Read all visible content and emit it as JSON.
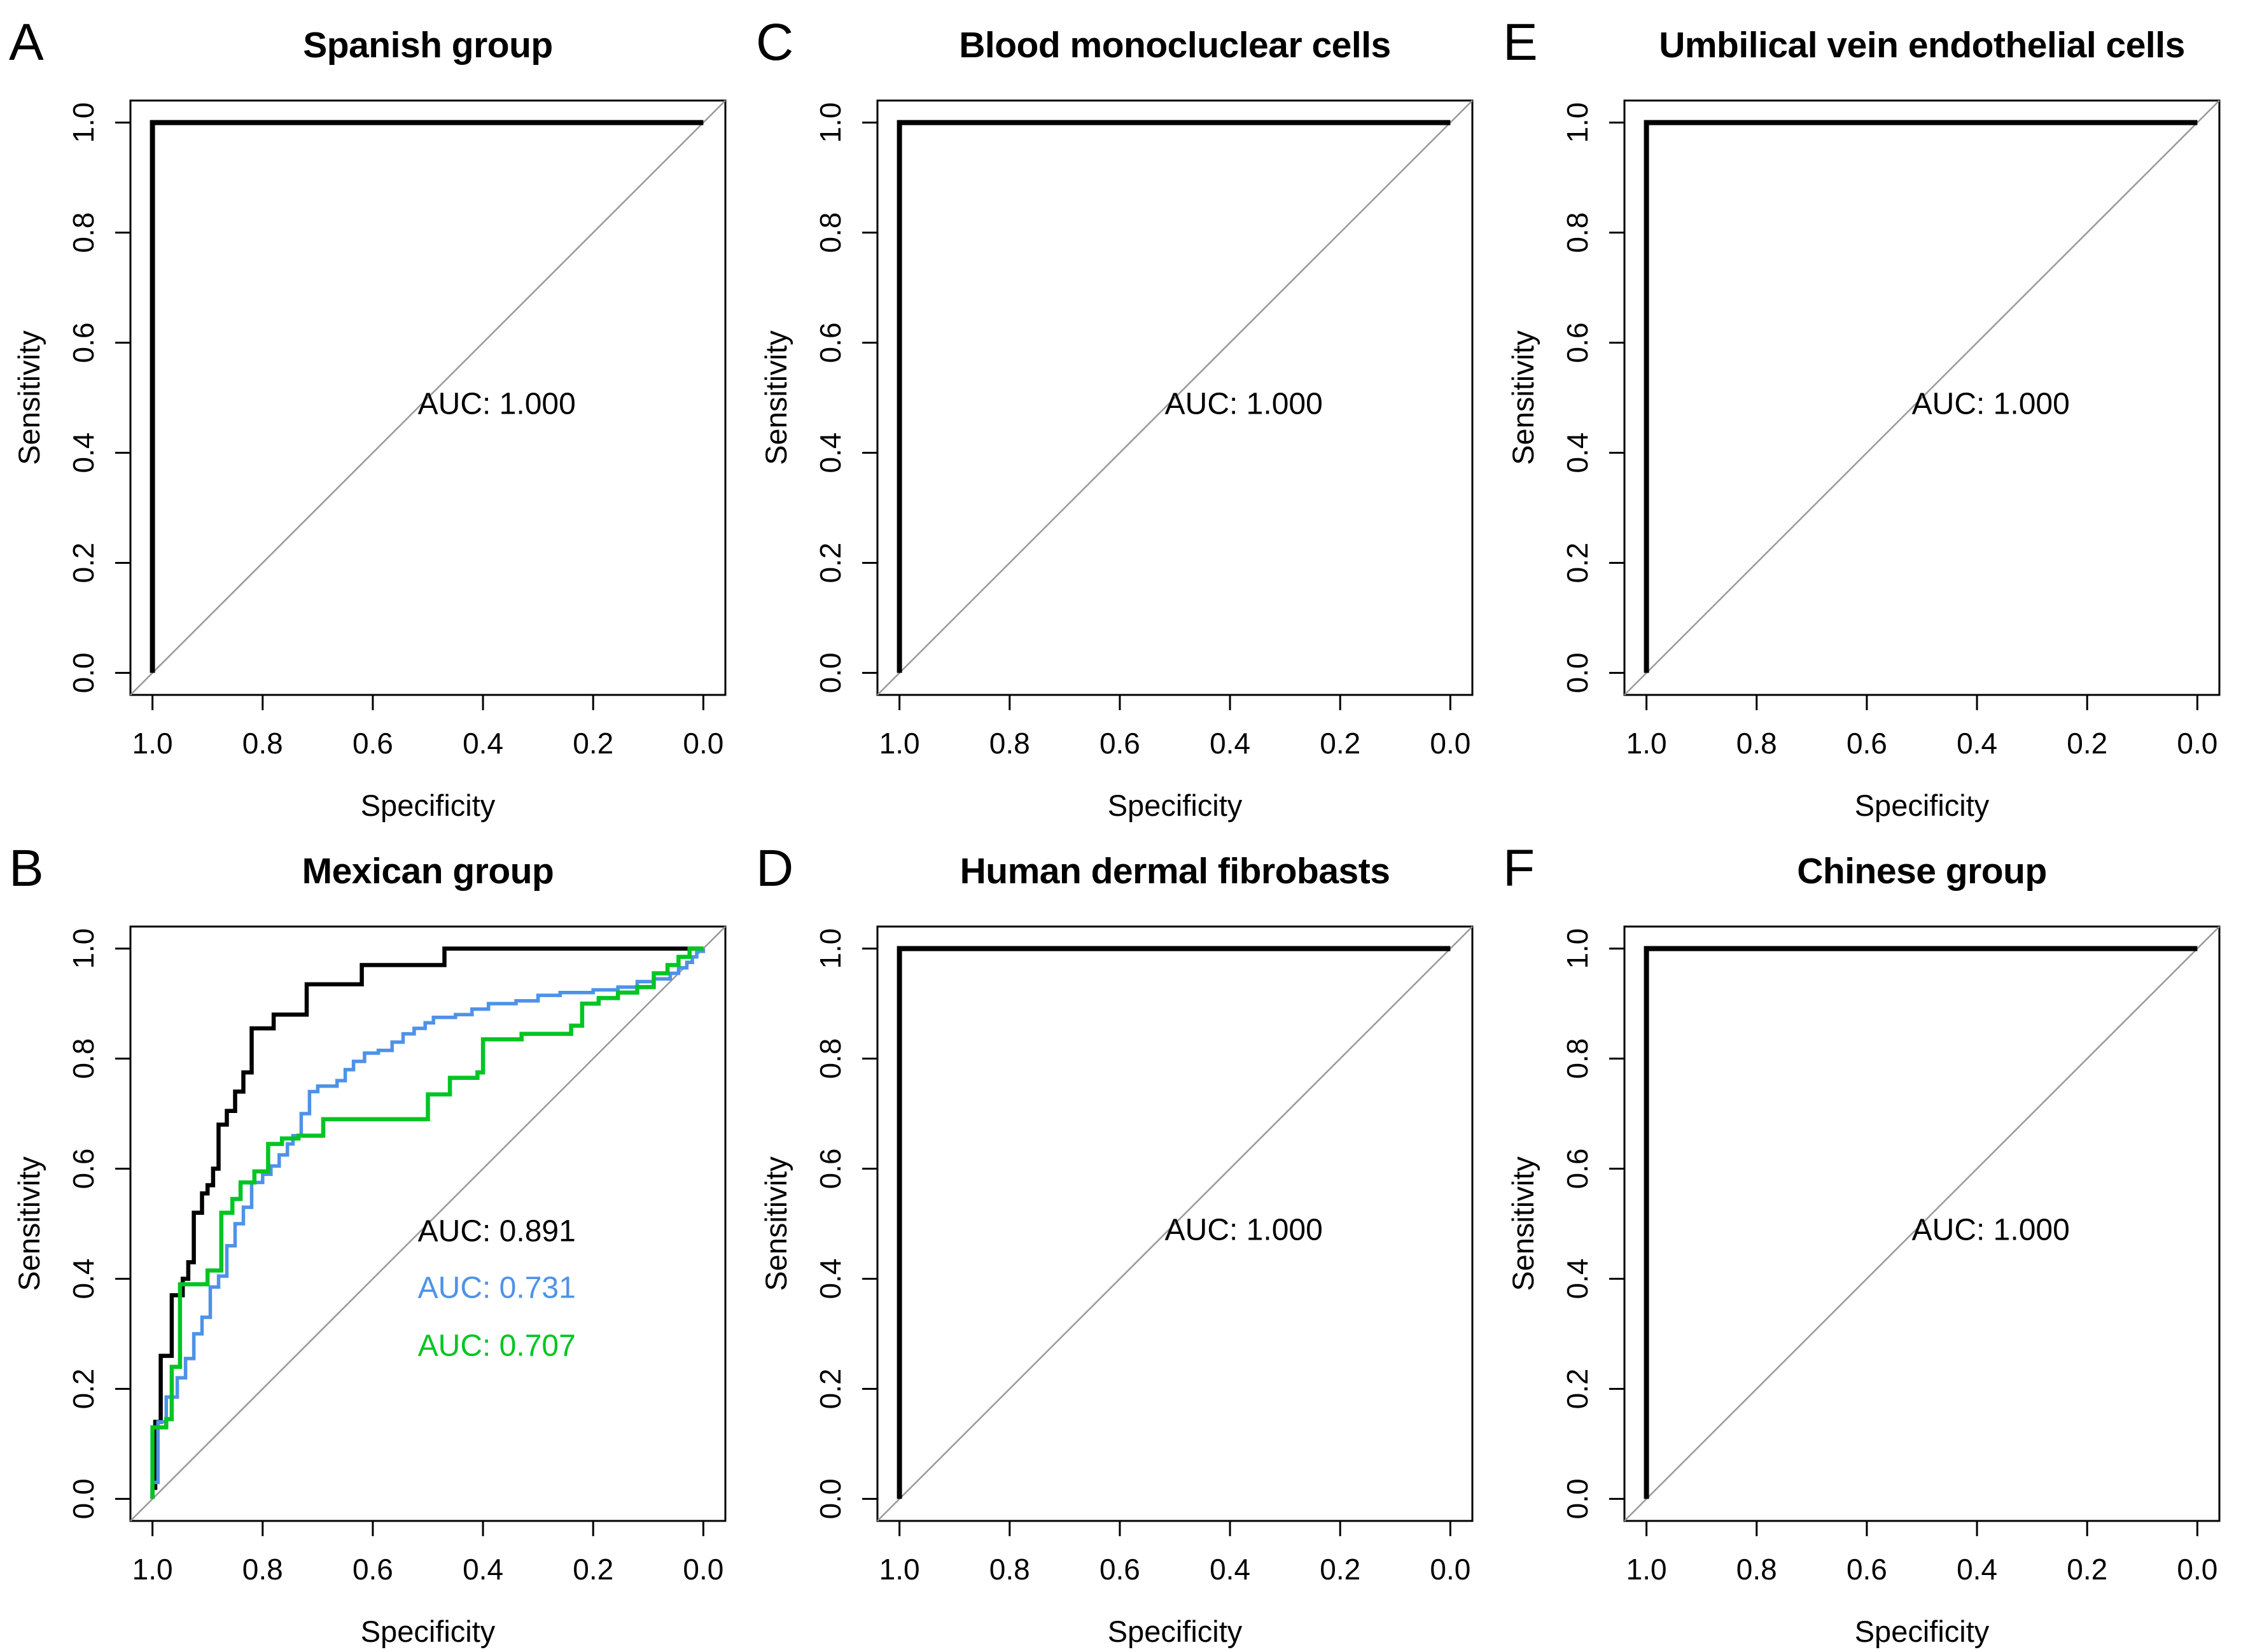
{
  "figure": {
    "background": "#ffffff",
    "axis": {
      "xlabel": "Specificity",
      "ylabel": "Sensitivity",
      "x_tick_labels": [
        "1.0",
        "0.8",
        "0.6",
        "0.4",
        "0.2",
        "0.0"
      ],
      "y_tick_labels": [
        "0.0",
        "0.2",
        "0.4",
        "0.6",
        "0.8",
        "1.0"
      ]
    },
    "colors": {
      "curve_black": "#000000",
      "curve_blue": "#4e92e8",
      "curve_green": "#00c522",
      "diagonal": "#999999",
      "box": "#000000"
    }
  },
  "chart_data": [
    {
      "panel_label": "A",
      "title": "Spanish group",
      "type": "line",
      "xlabel": "Specificity",
      "ylabel": "Sensitivity",
      "x_range_reversed": [
        1.0,
        0.0
      ],
      "y_range": [
        0.0,
        1.0
      ],
      "diagonal": true,
      "series": [
        {
          "name": "roc-black",
          "color_key": "curve_black",
          "auc": "1.000",
          "points": [
            [
              1,
              0
            ],
            [
              1,
              1
            ],
            [
              0,
              1
            ]
          ]
        }
      ],
      "annotations": [
        {
          "text": "AUC: 1.000",
          "color_key": "curve_black",
          "x": 0.375,
          "y": 0.49
        }
      ]
    },
    {
      "panel_label": "C",
      "title": "Blood monocluclear cells",
      "type": "line",
      "xlabel": "Specificity",
      "ylabel": "Sensitivity",
      "x_range_reversed": [
        1.0,
        0.0
      ],
      "y_range": [
        0.0,
        1.0
      ],
      "diagonal": true,
      "series": [
        {
          "name": "roc-black",
          "color_key": "curve_black",
          "auc": "1.000",
          "points": [
            [
              1,
              0
            ],
            [
              1,
              1
            ],
            [
              0,
              1
            ]
          ]
        }
      ],
      "annotations": [
        {
          "text": "AUC: 1.000",
          "color_key": "curve_black",
          "x": 0.375,
          "y": 0.49
        }
      ]
    },
    {
      "panel_label": "E",
      "title": "Umbilical vein endothelial cells",
      "type": "line",
      "xlabel": "Specificity",
      "ylabel": "Sensitivity",
      "x_range_reversed": [
        1.0,
        0.0
      ],
      "y_range": [
        0.0,
        1.0
      ],
      "diagonal": true,
      "series": [
        {
          "name": "roc-black",
          "color_key": "curve_black",
          "auc": "1.000",
          "points": [
            [
              1,
              0
            ],
            [
              1,
              1
            ],
            [
              0,
              1
            ]
          ]
        }
      ],
      "annotations": [
        {
          "text": "AUC: 1.000",
          "color_key": "curve_black",
          "x": 0.375,
          "y": 0.49
        }
      ]
    },
    {
      "panel_label": "B",
      "title": "Mexican group",
      "type": "line",
      "xlabel": "Specificity",
      "ylabel": "Sensitivity",
      "x_range_reversed": [
        1.0,
        0.0
      ],
      "y_range": [
        0.0,
        1.0
      ],
      "diagonal": true,
      "series": [
        {
          "name": "roc-black",
          "color_key": "curve_black",
          "auc": "0.891",
          "points": [
            [
              1,
              0
            ],
            [
              1,
              0.02
            ],
            [
              0.995,
              0.14
            ],
            [
              0.985,
              0.26
            ],
            [
              0.965,
              0.37
            ],
            [
              0.945,
              0.4
            ],
            [
              0.935,
              0.43
            ],
            [
              0.925,
              0.52
            ],
            [
              0.91,
              0.555
            ],
            [
              0.9,
              0.57
            ],
            [
              0.89,
              0.6
            ],
            [
              0.88,
              0.68
            ],
            [
              0.865,
              0.705
            ],
            [
              0.85,
              0.74
            ],
            [
              0.835,
              0.775
            ],
            [
              0.82,
              0.855
            ],
            [
              0.78,
              0.88
            ],
            [
              0.72,
              0.935
            ],
            [
              0.62,
              0.97
            ],
            [
              0.47,
              1.0
            ],
            [
              0,
              1.0
            ]
          ]
        },
        {
          "name": "roc-blue",
          "color_key": "curve_blue",
          "auc": "0.731",
          "points": [
            [
              1,
              0
            ],
            [
              1,
              0.03
            ],
            [
              0.99,
              0.14
            ],
            [
              0.975,
              0.185
            ],
            [
              0.955,
              0.22
            ],
            [
              0.94,
              0.255
            ],
            [
              0.925,
              0.3
            ],
            [
              0.91,
              0.33
            ],
            [
              0.895,
              0.385
            ],
            [
              0.88,
              0.405
            ],
            [
              0.865,
              0.46
            ],
            [
              0.85,
              0.5
            ],
            [
              0.835,
              0.53
            ],
            [
              0.82,
              0.575
            ],
            [
              0.8,
              0.59
            ],
            [
              0.785,
              0.605
            ],
            [
              0.77,
              0.625
            ],
            [
              0.755,
              0.645
            ],
            [
              0.745,
              0.66
            ],
            [
              0.73,
              0.7
            ],
            [
              0.715,
              0.74
            ],
            [
              0.7,
              0.75
            ],
            [
              0.665,
              0.76
            ],
            [
              0.65,
              0.78
            ],
            [
              0.635,
              0.795
            ],
            [
              0.615,
              0.81
            ],
            [
              0.59,
              0.815
            ],
            [
              0.565,
              0.83
            ],
            [
              0.545,
              0.845
            ],
            [
              0.525,
              0.855
            ],
            [
              0.505,
              0.865
            ],
            [
              0.49,
              0.875
            ],
            [
              0.45,
              0.88
            ],
            [
              0.42,
              0.89
            ],
            [
              0.39,
              0.9
            ],
            [
              0.34,
              0.905
            ],
            [
              0.3,
              0.915
            ],
            [
              0.26,
              0.92
            ],
            [
              0.2,
              0.925
            ],
            [
              0.155,
              0.93
            ],
            [
              0.12,
              0.94
            ],
            [
              0.09,
              0.945
            ],
            [
              0.06,
              0.955
            ],
            [
              0.045,
              0.965
            ],
            [
              0.03,
              0.975
            ],
            [
              0.02,
              0.985
            ],
            [
              0.012,
              0.995
            ],
            [
              0,
              1.0
            ]
          ]
        },
        {
          "name": "roc-green",
          "color_key": "curve_green",
          "auc": "0.707",
          "points": [
            [
              1,
              0
            ],
            [
              1,
              0.13
            ],
            [
              0.975,
              0.145
            ],
            [
              0.965,
              0.24
            ],
            [
              0.95,
              0.39
            ],
            [
              0.9,
              0.415
            ],
            [
              0.875,
              0.52
            ],
            [
              0.855,
              0.545
            ],
            [
              0.84,
              0.575
            ],
            [
              0.815,
              0.595
            ],
            [
              0.79,
              0.645
            ],
            [
              0.765,
              0.655
            ],
            [
              0.735,
              0.66
            ],
            [
              0.69,
              0.69
            ],
            [
              0.5,
              0.735
            ],
            [
              0.46,
              0.765
            ],
            [
              0.41,
              0.775
            ],
            [
              0.4,
              0.835
            ],
            [
              0.33,
              0.845
            ],
            [
              0.24,
              0.86
            ],
            [
              0.22,
              0.9
            ],
            [
              0.19,
              0.91
            ],
            [
              0.155,
              0.92
            ],
            [
              0.12,
              0.93
            ],
            [
              0.09,
              0.955
            ],
            [
              0.065,
              0.97
            ],
            [
              0.045,
              0.985
            ],
            [
              0.025,
              1.0
            ],
            [
              0,
              1.0
            ]
          ]
        }
      ],
      "annotations": [
        {
          "text": "AUC: 0.891",
          "color_key": "curve_black",
          "x": 0.375,
          "y": 0.488
        },
        {
          "text": "AUC: 0.731",
          "color_key": "curve_blue",
          "x": 0.375,
          "y": 0.385
        },
        {
          "text": "AUC: 0.707",
          "color_key": "curve_green",
          "x": 0.375,
          "y": 0.28
        }
      ]
    },
    {
      "panel_label": "D",
      "title": "Human dermal fibrobasts",
      "type": "line",
      "xlabel": "Specificity",
      "ylabel": "Sensitivity",
      "x_range_reversed": [
        1.0,
        0.0
      ],
      "y_range": [
        0.0,
        1.0
      ],
      "diagonal": true,
      "series": [
        {
          "name": "roc-black",
          "color_key": "curve_black",
          "auc": "1.000",
          "points": [
            [
              1,
              0
            ],
            [
              1,
              1
            ],
            [
              0,
              1
            ]
          ]
        }
      ],
      "annotations": [
        {
          "text": "AUC: 1.000",
          "color_key": "curve_black",
          "x": 0.375,
          "y": 0.49
        }
      ]
    },
    {
      "panel_label": "F",
      "title": "Chinese group",
      "type": "line",
      "xlabel": "Specificity",
      "ylabel": "Sensitivity",
      "x_range_reversed": [
        1.0,
        0.0
      ],
      "y_range": [
        0.0,
        1.0
      ],
      "diagonal": true,
      "series": [
        {
          "name": "roc-black",
          "color_key": "curve_black",
          "auc": "1.000",
          "points": [
            [
              1,
              0
            ],
            [
              1,
              1
            ],
            [
              0,
              1
            ]
          ]
        }
      ],
      "annotations": [
        {
          "text": "AUC: 1.000",
          "color_key": "curve_black",
          "x": 0.375,
          "y": 0.49
        }
      ]
    }
  ]
}
